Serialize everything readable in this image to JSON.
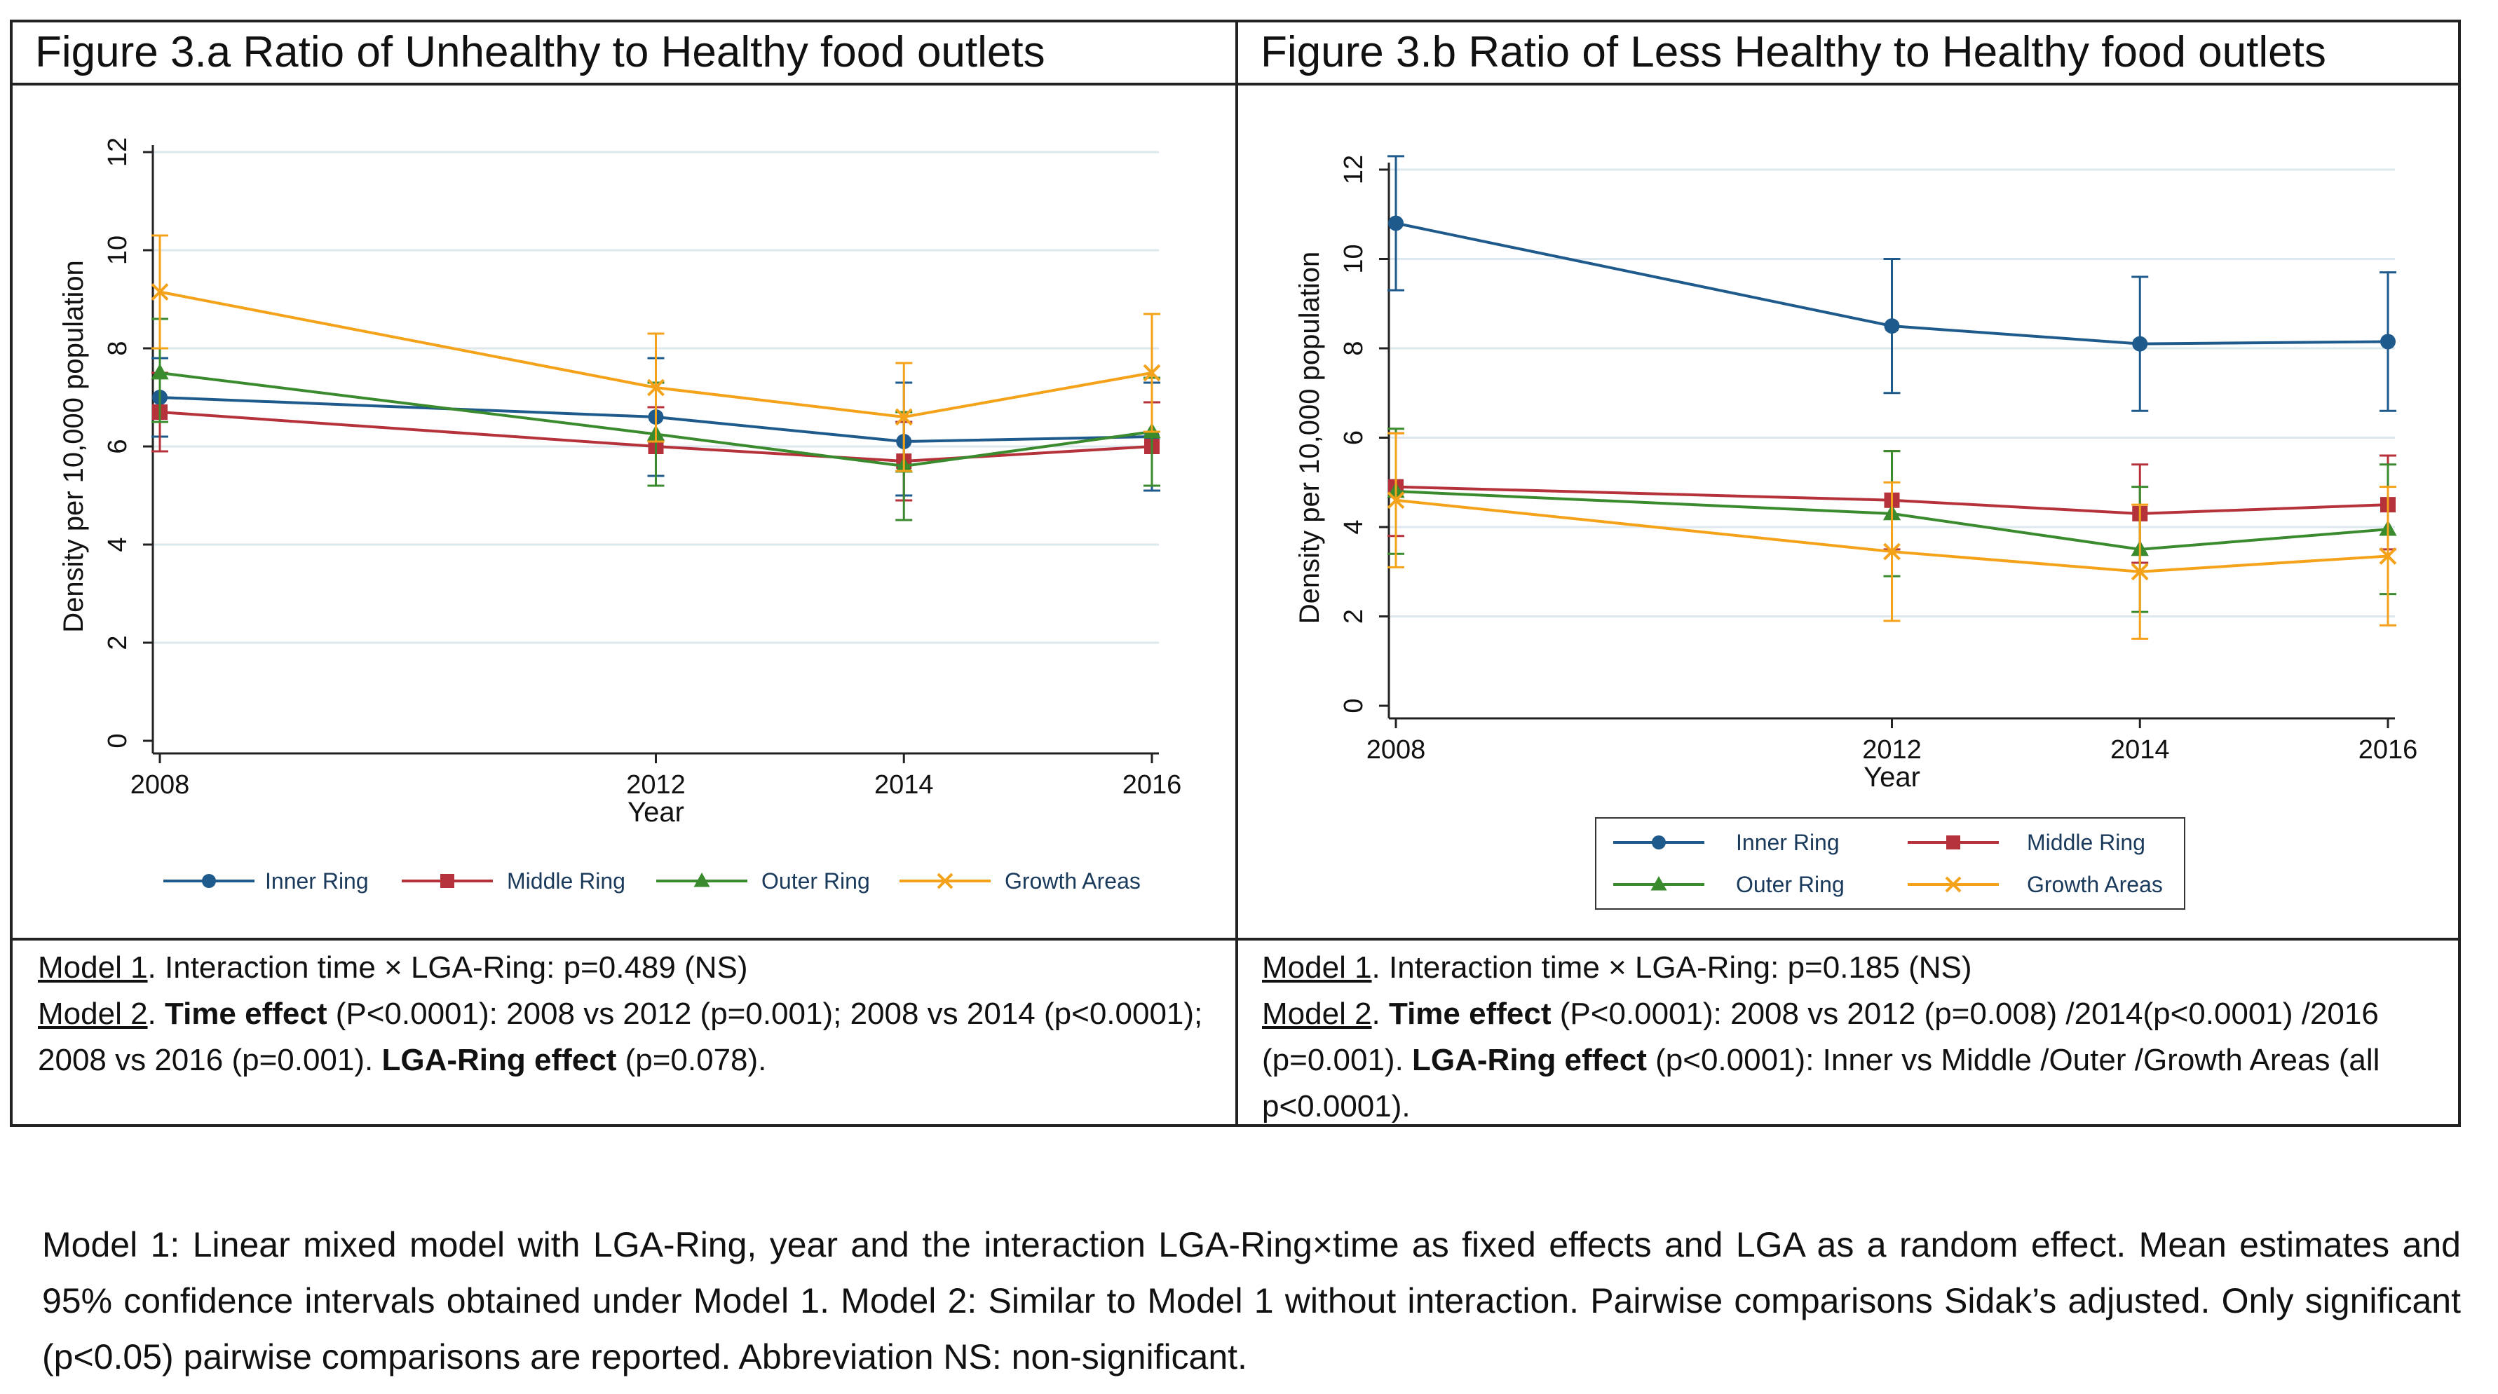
{
  "panels": {
    "a": {
      "title": "Figure 3.a Ratio of Unhealthy to Healthy food outlets",
      "model1_label": "Model 1",
      "model1_text": ". Interaction time × LGA-Ring: p=0.489 (NS)",
      "model2_label": "Model 2",
      "model2_pre": ". ",
      "model2_time_label": "Time effect",
      "model2_time_text": " (P<0.0001): 2008 vs 2012 (p=0.001); 2008 vs 2014 (p<0.0001); 2008 vs 2016 (p=0.001). ",
      "model2_ring_label": "LGA-Ring effect",
      "model2_ring_text": " (p=0.078)."
    },
    "b": {
      "title": "Figure 3.b Ratio of Less Healthy to Healthy food outlets",
      "model1_label": "Model 1",
      "model1_text": ". Interaction time × LGA-Ring: p=0.185 (NS)",
      "model2_label": "Model 2",
      "model2_pre": ". ",
      "model2_time_label": "Time effect",
      "model2_time_text": " (P<0.0001): 2008 vs 2012 (p=0.008) /2014(p<0.0001) /2016 (p=0.001). ",
      "model2_ring_label": "LGA-Ring effect",
      "model2_ring_text": " (p<0.0001): Inner vs Middle /Outer /Growth Areas (all p<0.0001)."
    }
  },
  "footnote": "Model 1: Linear mixed model with LGA-Ring, year and the interaction LGA-Ring×time as fixed effects and LGA as a random effect. Mean estimates and 95% confidence intervals obtained under Model 1. Model 2: Similar to Model 1 without interaction. Pairwise comparisons Sidak’s adjusted. Only significant (p<0.05) pairwise comparisons are reported. Abbreviation NS: non-significant.",
  "colors": {
    "inner": "#1f5a8c",
    "middle": "#b5323a",
    "outer": "#3a8a2e",
    "growth": "#f5a21b",
    "grid": "#dde7ee",
    "axis": "#222222"
  },
  "chart_data": [
    {
      "id": "a",
      "type": "line",
      "title": "Figure 3.a Ratio of Unhealthy to Healthy food outlets",
      "xlabel": "Year",
      "ylabel": "Density per 10,000 population",
      "x": [
        2008,
        2012,
        2014,
        2016
      ],
      "xlim": [
        2008,
        2016
      ],
      "ylim": [
        0,
        12
      ],
      "yticks": [
        0,
        2,
        4,
        6,
        8,
        10,
        12
      ],
      "grid": true,
      "legend_position": "bottom",
      "legend_columns": 4,
      "series": [
        {
          "name": "Inner Ring",
          "key": "inner",
          "marker": "circle",
          "values": [
            7.0,
            6.6,
            6.1,
            6.2
          ],
          "lower": [
            6.2,
            5.4,
            5.0,
            5.1
          ],
          "upper": [
            7.8,
            7.8,
            7.3,
            7.3
          ]
        },
        {
          "name": "Middle Ring",
          "key": "middle",
          "marker": "square",
          "values": [
            6.7,
            6.0,
            5.7,
            6.0
          ],
          "lower": [
            5.9,
            5.2,
            4.9,
            5.2
          ],
          "upper": [
            7.5,
            6.8,
            6.5,
            6.9
          ]
        },
        {
          "name": "Outer Ring",
          "key": "outer",
          "marker": "triangle",
          "values": [
            7.5,
            6.25,
            5.6,
            6.3
          ],
          "lower": [
            6.5,
            5.2,
            4.5,
            5.2
          ],
          "upper": [
            8.6,
            7.3,
            6.7,
            7.4
          ]
        },
        {
          "name": "Growth Areas",
          "key": "growth",
          "marker": "x",
          "values": [
            9.15,
            7.2,
            6.6,
            7.5
          ],
          "lower": [
            8.0,
            6.1,
            5.5,
            6.3
          ],
          "upper": [
            10.3,
            8.3,
            7.7,
            8.7
          ]
        }
      ]
    },
    {
      "id": "b",
      "type": "line",
      "title": "Figure 3.b Ratio of Less Healthy to Healthy food outlets",
      "xlabel": "Year",
      "ylabel": "Density per 10,000 population",
      "x": [
        2008,
        2012,
        2014,
        2016
      ],
      "xlim": [
        2008,
        2016
      ],
      "ylim": [
        0,
        12
      ],
      "yticks": [
        0,
        2,
        4,
        6,
        8,
        10,
        12
      ],
      "grid": true,
      "legend_position": "bottom",
      "legend_columns": 2,
      "series": [
        {
          "name": "Inner Ring",
          "key": "inner",
          "marker": "circle",
          "values": [
            10.8,
            8.5,
            8.1,
            8.15
          ],
          "lower": [
            9.3,
            7.0,
            6.6,
            6.6
          ],
          "upper": [
            12.3,
            10.0,
            9.6,
            9.7
          ]
        },
        {
          "name": "Middle Ring",
          "key": "middle",
          "marker": "square",
          "values": [
            4.9,
            4.6,
            4.3,
            4.5
          ],
          "lower": [
            3.8,
            3.5,
            3.2,
            3.5
          ],
          "upper": [
            6.1,
            5.7,
            5.4,
            5.6
          ]
        },
        {
          "name": "Outer Ring",
          "key": "outer",
          "marker": "triangle",
          "values": [
            4.8,
            4.3,
            3.5,
            3.95
          ],
          "lower": [
            3.4,
            2.9,
            2.1,
            2.5
          ],
          "upper": [
            6.2,
            5.7,
            4.9,
            5.4
          ]
        },
        {
          "name": "Growth Areas",
          "key": "growth",
          "marker": "x",
          "values": [
            4.6,
            3.45,
            3.0,
            3.35
          ],
          "lower": [
            3.1,
            1.9,
            1.5,
            1.8
          ],
          "upper": [
            6.1,
            5.0,
            4.5,
            4.9
          ]
        }
      ]
    }
  ]
}
